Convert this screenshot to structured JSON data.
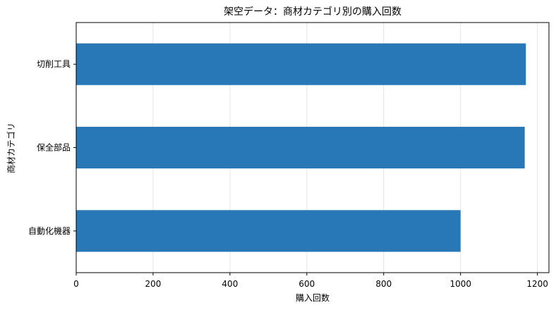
{
  "chart_data": {
    "type": "bar",
    "orientation": "horizontal",
    "title": "架空データ：商材カテゴリ別の購入回数",
    "xlabel": "購入回数",
    "ylabel": "商材カテゴリ",
    "categories": [
      "切削工具",
      "保全部品",
      "自動化機器"
    ],
    "values": [
      1170,
      1167,
      1000
    ],
    "xlim": [
      0,
      1230
    ],
    "xticks": [
      0,
      200,
      400,
      600,
      800,
      1000,
      1200
    ],
    "grid": "x",
    "bar_color": "#2878b8",
    "legend": "none"
  }
}
